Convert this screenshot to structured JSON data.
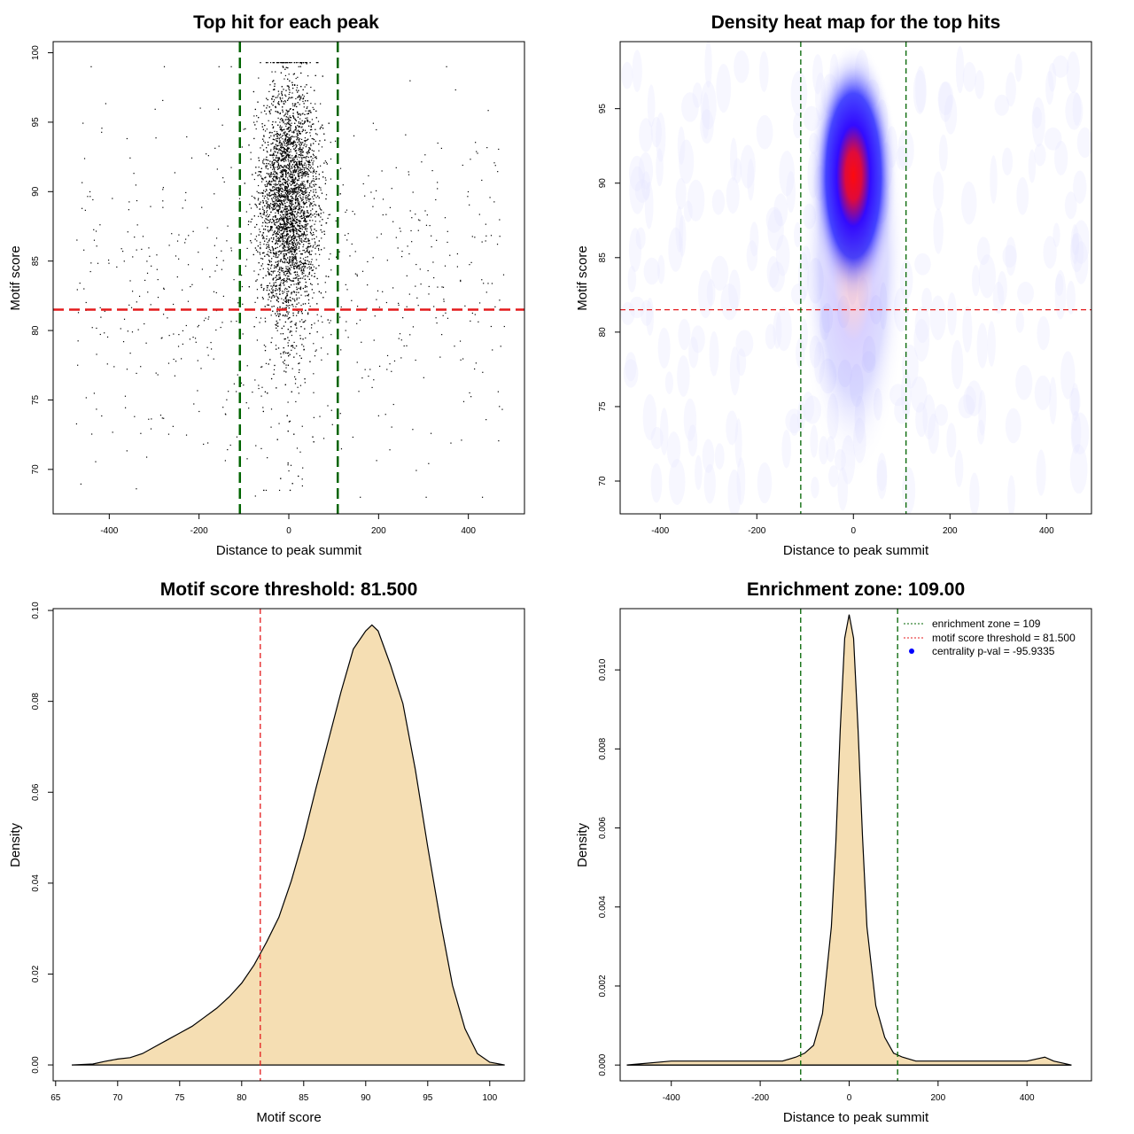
{
  "colors": {
    "threshold_red": "#e41a1c",
    "zone_green": "#006400",
    "density_fill": "#f5deb3",
    "heat_low": "#0000ff",
    "heat_high": "#ff0000",
    "legend_point": "#0000ff"
  },
  "chart_data": [
    {
      "type": "scatter",
      "title": "Top hit for each peak",
      "xlabel": "Distance to peak summit",
      "ylabel": "Motif score",
      "xlim": [
        -525,
        525
      ],
      "ylim": [
        66.8,
        100.8
      ],
      "xticks": [
        "-400",
        "-200",
        "0",
        "200",
        "400"
      ],
      "xtick_values": [
        -400,
        -200,
        0,
        200,
        400
      ],
      "yticks": [
        "70",
        "75",
        "80",
        "85",
        "90",
        "95",
        "100"
      ],
      "ytick_values": [
        70,
        75,
        80,
        85,
        90,
        95,
        100
      ],
      "threshold": 81.5,
      "zone": [
        -109,
        109
      ],
      "points": {
        "central_count": 5200,
        "background_count": 620,
        "central_center": 0,
        "central_sd": 32,
        "score_mean": 89.5,
        "score_sd": 4.2
      }
    },
    {
      "type": "heatmap",
      "title": "Density heat map for the top hits",
      "xlabel": "Distance to peak summit",
      "ylabel": "Motif score",
      "xlim": [
        -483,
        493
      ],
      "ylim": [
        67.8,
        99.5
      ],
      "xticks": [
        "-400",
        "-200",
        "0",
        "200",
        "400"
      ],
      "xtick_values": [
        -400,
        -200,
        0,
        200,
        400
      ],
      "yticks": [
        "70",
        "75",
        "80",
        "85",
        "90",
        "95"
      ],
      "ytick_values": [
        70,
        75,
        80,
        85,
        90,
        95
      ],
      "threshold": 81.5,
      "zone": [
        -109,
        109
      ],
      "peak": {
        "x": 0,
        "y": 90.5,
        "sx": 22,
        "sy": 4
      }
    },
    {
      "type": "area",
      "title": "Motif score threshold: 81.500",
      "xlabel": "Motif score",
      "ylabel": "Density",
      "xlim": [
        64.8,
        102.8
      ],
      "ylim": [
        -0.0035,
        0.1004
      ],
      "xticks": [
        "65",
        "70",
        "75",
        "80",
        "85",
        "90",
        "95",
        "100"
      ],
      "xtick_values": [
        65,
        70,
        75,
        80,
        85,
        90,
        95,
        100
      ],
      "yticks": [
        "0.00",
        "0.02",
        "0.04",
        "0.06",
        "0.08",
        "0.10"
      ],
      "ytick_values": [
        0,
        0.02,
        0.04,
        0.06,
        0.08,
        0.1
      ],
      "threshold": 81.5,
      "x": [
        66.3,
        68.0,
        69.0,
        70.0,
        71.0,
        72.0,
        73.0,
        74.0,
        75.0,
        76.0,
        77.0,
        78.0,
        79.0,
        80.0,
        81.0,
        81.5,
        82.0,
        83.0,
        84.0,
        85.0,
        86.0,
        87.0,
        88.0,
        89.0,
        90.0,
        90.5,
        91.0,
        92.0,
        93.0,
        94.0,
        95.0,
        96.0,
        97.0,
        98.0,
        99.0,
        100.0,
        101.2
      ],
      "y": [
        0.0,
        0.0002,
        0.0008,
        0.0013,
        0.0016,
        0.0025,
        0.004,
        0.0055,
        0.007,
        0.0085,
        0.0105,
        0.0125,
        0.015,
        0.018,
        0.022,
        0.0245,
        0.027,
        0.0325,
        0.0405,
        0.05,
        0.061,
        0.0715,
        0.082,
        0.0915,
        0.0955,
        0.0968,
        0.0955,
        0.088,
        0.0795,
        0.065,
        0.048,
        0.032,
        0.0175,
        0.008,
        0.0025,
        0.0006,
        0.0
      ]
    },
    {
      "type": "area",
      "title": "Enrichment zone: 109.00",
      "xlabel": "Distance to peak summit",
      "ylabel": "Density",
      "xlim": [
        -515,
        545
      ],
      "ylim": [
        -0.0004,
        0.01155
      ],
      "xticks": [
        "-400",
        "-200",
        "0",
        "200",
        "400"
      ],
      "xtick_values": [
        -400,
        -200,
        0,
        200,
        400
      ],
      "yticks": [
        "0.000",
        "0.002",
        "0.004",
        "0.006",
        "0.008",
        "0.010"
      ],
      "ytick_values": [
        0,
        0.002,
        0.004,
        0.006,
        0.008,
        0.01
      ],
      "zone": [
        -109,
        109
      ],
      "x": [
        -500,
        -400,
        -300,
        -200,
        -150,
        -120,
        -100,
        -80,
        -60,
        -40,
        -30,
        -20,
        -10,
        0,
        10,
        20,
        30,
        40,
        60,
        80,
        100,
        120,
        150,
        200,
        300,
        400,
        440,
        460,
        500
      ],
      "y": [
        0.0,
        0.0001,
        0.0001,
        0.0001,
        0.0001,
        0.0002,
        0.0003,
        0.0005,
        0.0013,
        0.0035,
        0.0056,
        0.0085,
        0.0108,
        0.0114,
        0.0108,
        0.0085,
        0.0058,
        0.0035,
        0.0015,
        0.0007,
        0.0003,
        0.0002,
        0.0001,
        0.0001,
        0.0001,
        0.0001,
        0.0002,
        0.0001,
        0.0
      ],
      "legend": [
        {
          "label": "enrichment zone = 109",
          "style": "dotted-green"
        },
        {
          "label": "motif score threshold = 81.500",
          "style": "dotted-red"
        },
        {
          "label": "centrality p-val = -95.9335",
          "style": "blue-point"
        }
      ]
    }
  ]
}
